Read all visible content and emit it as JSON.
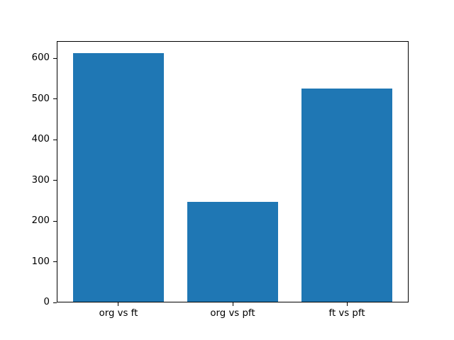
{
  "chart_data": {
    "type": "bar",
    "categories": [
      "org vs ft",
      "org vs pft",
      "ft vs pft"
    ],
    "values": [
      612,
      247,
      526
    ],
    "yticks": [
      0,
      100,
      200,
      300,
      400,
      500,
      600
    ],
    "ylim": [
      0,
      642.6
    ],
    "xlim": [
      -0.54,
      2.54
    ],
    "bar_positions": [
      0,
      1,
      2
    ],
    "bar_width": 0.8,
    "bar_color": "#1f77b4",
    "axis_color": "#000000",
    "background_color": "#ffffff",
    "grid": false,
    "legend": null,
    "title": "",
    "xlabel": "",
    "ylabel": ""
  }
}
